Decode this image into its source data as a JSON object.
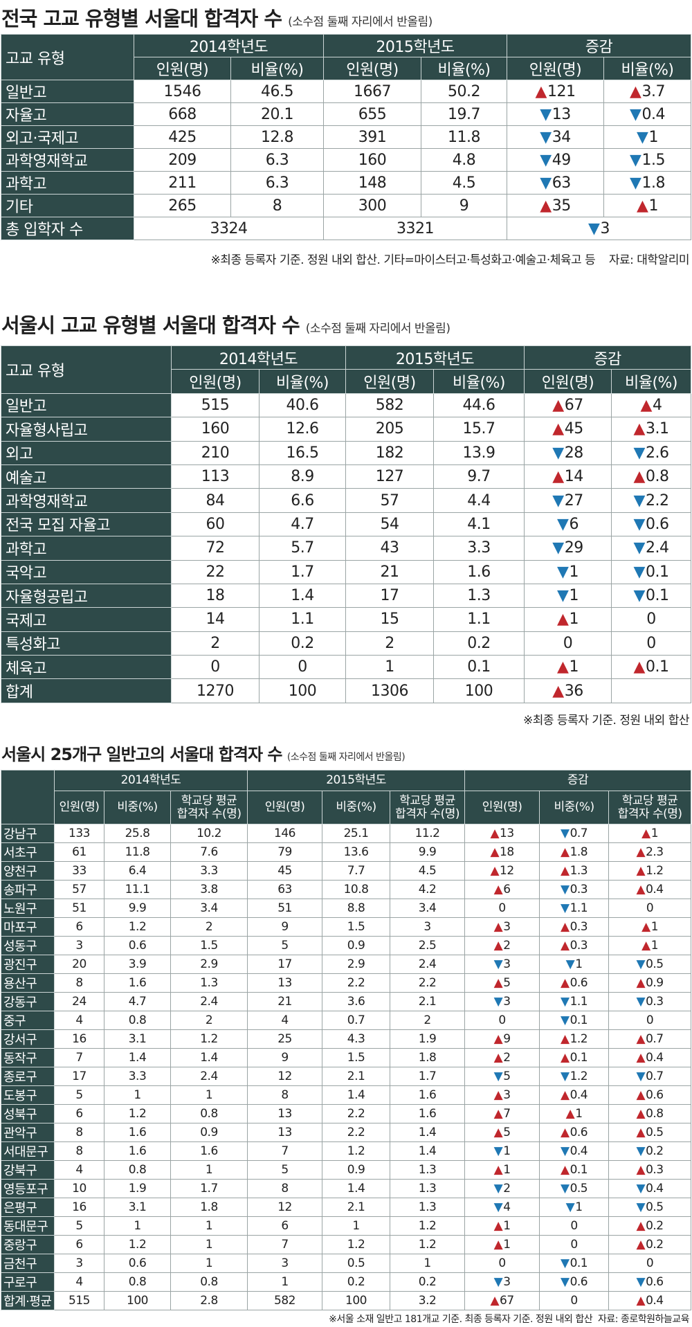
{
  "section1": {
    "title": "전국 고교 유형별 서울대 합격자 수",
    "subtitle": "(소수점 둘째 자리에서 반올림)",
    "header": {
      "type_label": "고교 유형",
      "year1": "2014학년도",
      "year2": "2015학년도",
      "change": "증감",
      "count": "인원(명)",
      "ratio": "비율(%)"
    },
    "rows": [
      {
        "name": "일반고",
        "c14": "1546",
        "r14": "46.5",
        "c15": "1667",
        "r15": "50.2",
        "dc": "121",
        "dc_dir": "up",
        "dr": "3.7",
        "dr_dir": "up"
      },
      {
        "name": "자율고",
        "c14": "668",
        "r14": "20.1",
        "c15": "655",
        "r15": "19.7",
        "dc": "13",
        "dc_dir": "down",
        "dr": "0.4",
        "dr_dir": "down"
      },
      {
        "name": "외고·국제고",
        "c14": "425",
        "r14": "12.8",
        "c15": "391",
        "r15": "11.8",
        "dc": "34",
        "dc_dir": "down",
        "dr": "1",
        "dr_dir": "down"
      },
      {
        "name": "과학영재학교",
        "c14": "209",
        "r14": "6.3",
        "c15": "160",
        "r15": "4.8",
        "dc": "49",
        "dc_dir": "down",
        "dr": "1.5",
        "dr_dir": "down"
      },
      {
        "name": "과학고",
        "c14": "211",
        "r14": "6.3",
        "c15": "148",
        "r15": "4.5",
        "dc": "63",
        "dc_dir": "down",
        "dr": "1.8",
        "dr_dir": "down"
      },
      {
        "name": "기타",
        "c14": "265",
        "r14": "8",
        "c15": "300",
        "r15": "9",
        "dc": "35",
        "dc_dir": "up",
        "dr": "1",
        "dr_dir": "up"
      }
    ],
    "total": {
      "name": "총 입학자 수",
      "y14": "3324",
      "y15": "3321",
      "change": "3",
      "change_dir": "down"
    },
    "note": "※최종 등록자 기준. 정원 내외 합산. 기타=마이스터고·특성화고·예술고·체육고 등",
    "source": "자료: 대학알리미"
  },
  "section2": {
    "title": "서울시 고교 유형별 서울대 합격자 수",
    "subtitle": "(소수점 둘째 자리에서 반올림)",
    "header": {
      "type_label": "고교 유형",
      "year1": "2014학년도",
      "year2": "2015학년도",
      "change": "증감",
      "count": "인원(명)",
      "ratio": "비율(%)"
    },
    "rows": [
      {
        "name": "일반고",
        "c14": "515",
        "r14": "40.6",
        "c15": "582",
        "r15": "44.6",
        "dc": "67",
        "dc_dir": "up",
        "dr": "4",
        "dr_dir": "up"
      },
      {
        "name": "자율형사립고",
        "c14": "160",
        "r14": "12.6",
        "c15": "205",
        "r15": "15.7",
        "dc": "45",
        "dc_dir": "up",
        "dr": "3.1",
        "dr_dir": "up"
      },
      {
        "name": "외고",
        "c14": "210",
        "r14": "16.5",
        "c15": "182",
        "r15": "13.9",
        "dc": "28",
        "dc_dir": "down",
        "dr": "2.6",
        "dr_dir": "down"
      },
      {
        "name": "예술고",
        "c14": "113",
        "r14": "8.9",
        "c15": "127",
        "r15": "9.7",
        "dc": "14",
        "dc_dir": "up",
        "dr": "0.8",
        "dr_dir": "up"
      },
      {
        "name": "과학영재학교",
        "c14": "84",
        "r14": "6.6",
        "c15": "57",
        "r15": "4.4",
        "dc": "27",
        "dc_dir": "down",
        "dr": "2.2",
        "dr_dir": "down"
      },
      {
        "name": "전국 모집 자율고",
        "c14": "60",
        "r14": "4.7",
        "c15": "54",
        "r15": "4.1",
        "dc": "6",
        "dc_dir": "down",
        "dr": "0.6",
        "dr_dir": "down"
      },
      {
        "name": "과학고",
        "c14": "72",
        "r14": "5.7",
        "c15": "43",
        "r15": "3.3",
        "dc": "29",
        "dc_dir": "down",
        "dr": "2.4",
        "dr_dir": "down"
      },
      {
        "name": "국악고",
        "c14": "22",
        "r14": "1.7",
        "c15": "21",
        "r15": "1.6",
        "dc": "1",
        "dc_dir": "down",
        "dr": "0.1",
        "dr_dir": "down"
      },
      {
        "name": "자율형공립고",
        "c14": "18",
        "r14": "1.4",
        "c15": "17",
        "r15": "1.3",
        "dc": "1",
        "dc_dir": "down",
        "dr": "0.1",
        "dr_dir": "down"
      },
      {
        "name": "국제고",
        "c14": "14",
        "r14": "1.1",
        "c15": "15",
        "r15": "1.1",
        "dc": "1",
        "dc_dir": "up",
        "dr": "0",
        "dr_dir": "none"
      },
      {
        "name": "특성화고",
        "c14": "2",
        "r14": "0.2",
        "c15": "2",
        "r15": "0.2",
        "dc": "0",
        "dc_dir": "none",
        "dr": "0",
        "dr_dir": "none"
      },
      {
        "name": "체육고",
        "c14": "0",
        "r14": "0",
        "c15": "1",
        "r15": "0.1",
        "dc": "1",
        "dc_dir": "up",
        "dr": "0.1",
        "dr_dir": "up"
      },
      {
        "name": "합계",
        "c14": "1270",
        "r14": "100",
        "c15": "1306",
        "r15": "100",
        "dc": "36",
        "dc_dir": "up",
        "dr": "",
        "dr_dir": "none"
      }
    ],
    "note": "※최종 등록자 기준. 정원 내외 합산"
  },
  "section3": {
    "title": "서울시 25개구 일반고의 서울대 합격자 수",
    "subtitle": "(소수점 둘째 자리에서 반올림)",
    "header": {
      "year1": "2014학년도",
      "year2": "2015학년도",
      "change": "증감",
      "count": "인원(명)",
      "share": "비중(%)",
      "avg_line1": "학교당 평균",
      "avg_line2": "합격자 수(명)"
    },
    "rows": [
      {
        "name": "강남구",
        "a": "133",
        "b": "25.8",
        "c": "10.2",
        "d": "146",
        "e": "25.1",
        "f": "11.2",
        "g": "13",
        "gd": "up",
        "h": "0.7",
        "hd": "down",
        "i": "1",
        "id": "up"
      },
      {
        "name": "서초구",
        "a": "61",
        "b": "11.8",
        "c": "7.6",
        "d": "79",
        "e": "13.6",
        "f": "9.9",
        "g": "18",
        "gd": "up",
        "h": "1.8",
        "hd": "up",
        "i": "2.3",
        "id": "up"
      },
      {
        "name": "양천구",
        "a": "33",
        "b": "6.4",
        "c": "3.3",
        "d": "45",
        "e": "7.7",
        "f": "4.5",
        "g": "12",
        "gd": "up",
        "h": "1.3",
        "hd": "up",
        "i": "1.2",
        "id": "up"
      },
      {
        "name": "송파구",
        "a": "57",
        "b": "11.1",
        "c": "3.8",
        "d": "63",
        "e": "10.8",
        "f": "4.2",
        "g": "6",
        "gd": "up",
        "h": "0.3",
        "hd": "down",
        "i": "0.4",
        "id": "up"
      },
      {
        "name": "노원구",
        "a": "51",
        "b": "9.9",
        "c": "3.4",
        "d": "51",
        "e": "8.8",
        "f": "3.4",
        "g": "0",
        "gd": "none",
        "h": "1.1",
        "hd": "down",
        "i": "0",
        "id": "none"
      },
      {
        "name": "마포구",
        "a": "6",
        "b": "1.2",
        "c": "2",
        "d": "9",
        "e": "1.5",
        "f": "3",
        "g": "3",
        "gd": "up",
        "h": "0.3",
        "hd": "up",
        "i": "1",
        "id": "up"
      },
      {
        "name": "성동구",
        "a": "3",
        "b": "0.6",
        "c": "1.5",
        "d": "5",
        "e": "0.9",
        "f": "2.5",
        "g": "2",
        "gd": "up",
        "h": "0.3",
        "hd": "up",
        "i": "1",
        "id": "up"
      },
      {
        "name": "광진구",
        "a": "20",
        "b": "3.9",
        "c": "2.9",
        "d": "17",
        "e": "2.9",
        "f": "2.4",
        "g": "3",
        "gd": "down",
        "h": "1",
        "hd": "down",
        "i": "0.5",
        "id": "down"
      },
      {
        "name": "용산구",
        "a": "8",
        "b": "1.6",
        "c": "1.3",
        "d": "13",
        "e": "2.2",
        "f": "2.2",
        "g": "5",
        "gd": "up",
        "h": "0.6",
        "hd": "up",
        "i": "0.9",
        "id": "up"
      },
      {
        "name": "강동구",
        "a": "24",
        "b": "4.7",
        "c": "2.4",
        "d": "21",
        "e": "3.6",
        "f": "2.1",
        "g": "3",
        "gd": "down",
        "h": "1.1",
        "hd": "down",
        "i": "0.3",
        "id": "down"
      },
      {
        "name": "중구",
        "a": "4",
        "b": "0.8",
        "c": "2",
        "d": "4",
        "e": "0.7",
        "f": "2",
        "g": "0",
        "gd": "none",
        "h": "0.1",
        "hd": "down",
        "i": "0",
        "id": "none"
      },
      {
        "name": "강서구",
        "a": "16",
        "b": "3.1",
        "c": "1.2",
        "d": "25",
        "e": "4.3",
        "f": "1.9",
        "g": "9",
        "gd": "up",
        "h": "1.2",
        "hd": "up",
        "i": "0.7",
        "id": "up"
      },
      {
        "name": "동작구",
        "a": "7",
        "b": "1.4",
        "c": "1.4",
        "d": "9",
        "e": "1.5",
        "f": "1.8",
        "g": "2",
        "gd": "up",
        "h": "0.1",
        "hd": "up",
        "i": "0.4",
        "id": "up"
      },
      {
        "name": "종로구",
        "a": "17",
        "b": "3.3",
        "c": "2.4",
        "d": "12",
        "e": "2.1",
        "f": "1.7",
        "g": "5",
        "gd": "down",
        "h": "1.2",
        "hd": "down",
        "i": "0.7",
        "id": "down"
      },
      {
        "name": "도봉구",
        "a": "5",
        "b": "1",
        "c": "1",
        "d": "8",
        "e": "1.4",
        "f": "1.6",
        "g": "3",
        "gd": "up",
        "h": "0.4",
        "hd": "up",
        "i": "0.6",
        "id": "up"
      },
      {
        "name": "성북구",
        "a": "6",
        "b": "1.2",
        "c": "0.8",
        "d": "13",
        "e": "2.2",
        "f": "1.6",
        "g": "7",
        "gd": "up",
        "h": "1",
        "hd": "up",
        "i": "0.8",
        "id": "up"
      },
      {
        "name": "관악구",
        "a": "8",
        "b": "1.6",
        "c": "0.9",
        "d": "13",
        "e": "2.2",
        "f": "1.4",
        "g": "5",
        "gd": "up",
        "h": "0.6",
        "hd": "up",
        "i": "0.5",
        "id": "up"
      },
      {
        "name": "서대문구",
        "a": "8",
        "b": "1.6",
        "c": "1.6",
        "d": "7",
        "e": "1.2",
        "f": "1.4",
        "g": "1",
        "gd": "down",
        "h": "0.4",
        "hd": "down",
        "i": "0.2",
        "id": "down"
      },
      {
        "name": "강북구",
        "a": "4",
        "b": "0.8",
        "c": "1",
        "d": "5",
        "e": "0.9",
        "f": "1.3",
        "g": "1",
        "gd": "up",
        "h": "0.1",
        "hd": "up",
        "i": "0.3",
        "id": "up"
      },
      {
        "name": "영등포구",
        "a": "10",
        "b": "1.9",
        "c": "1.7",
        "d": "8",
        "e": "1.4",
        "f": "1.3",
        "g": "2",
        "gd": "down",
        "h": "0.5",
        "hd": "down",
        "i": "0.4",
        "id": "down"
      },
      {
        "name": "은평구",
        "a": "16",
        "b": "3.1",
        "c": "1.8",
        "d": "12",
        "e": "2.1",
        "f": "1.3",
        "g": "4",
        "gd": "down",
        "h": "1",
        "hd": "down",
        "i": "0.5",
        "id": "down"
      },
      {
        "name": "동대문구",
        "a": "5",
        "b": "1",
        "c": "1",
        "d": "6",
        "e": "1",
        "f": "1.2",
        "g": "1",
        "gd": "up",
        "h": "0",
        "hd": "none",
        "i": "0.2",
        "id": "up"
      },
      {
        "name": "중랑구",
        "a": "6",
        "b": "1.2",
        "c": "1",
        "d": "7",
        "e": "1.2",
        "f": "1.2",
        "g": "1",
        "gd": "up",
        "h": "0",
        "hd": "none",
        "i": "0.2",
        "id": "up"
      },
      {
        "name": "금천구",
        "a": "3",
        "b": "0.6",
        "c": "1",
        "d": "3",
        "e": "0.5",
        "f": "1",
        "g": "0",
        "gd": "none",
        "h": "0.1",
        "hd": "down",
        "i": "0",
        "id": "none"
      },
      {
        "name": "구로구",
        "a": "4",
        "b": "0.8",
        "c": "0.8",
        "d": "1",
        "e": "0.2",
        "f": "0.2",
        "g": "3",
        "gd": "down",
        "h": "0.6",
        "hd": "down",
        "i": "0.6",
        "id": "down"
      },
      {
        "name": "합계·평균",
        "a": "515",
        "b": "100",
        "c": "2.8",
        "d": "582",
        "e": "100",
        "f": "3.2",
        "g": "67",
        "gd": "up",
        "h": "0",
        "hd": "none",
        "i": "0.4",
        "id": "up"
      }
    ],
    "note": "※서울 소재 일반고 181개교 기준. 최종 등록자 기준. 정원 내외 합산",
    "source": "자료: 종로학원하늘교육"
  },
  "colors": {
    "header_bg": "#2e4a49",
    "up": "#c0272d",
    "down": "#1f78b4"
  },
  "icons": {
    "up": "triangle-up-icon",
    "down": "triangle-down-icon"
  }
}
